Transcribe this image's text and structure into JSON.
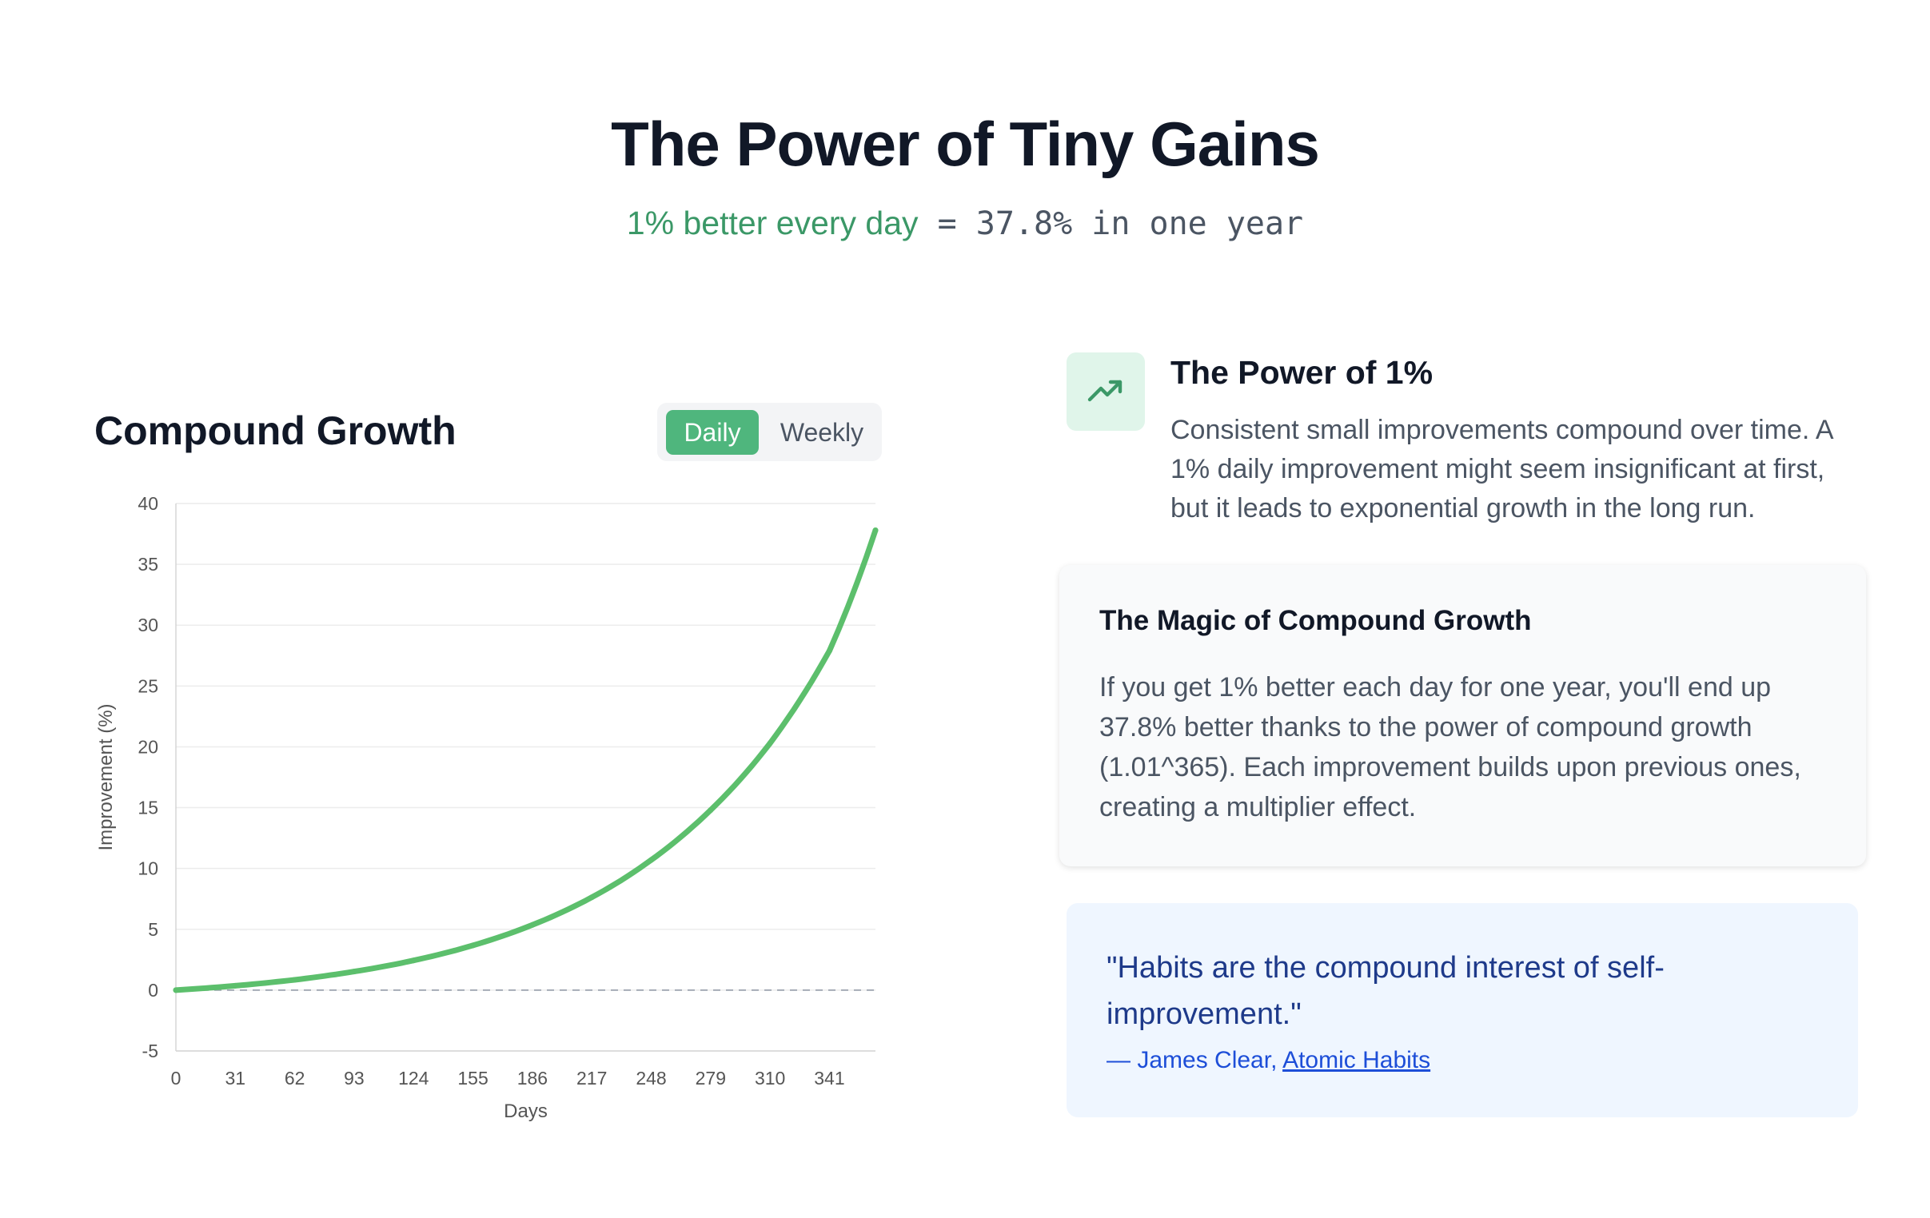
{
  "hero": {
    "title": "The Power of Tiny Gains",
    "subtitle_green": "1% better every day",
    "subtitle_mono": " = 37.8% in one year"
  },
  "chart_panel": {
    "title": "Compound Growth",
    "toggle": {
      "daily_label": "Daily",
      "weekly_label": "Weekly",
      "selected": "Daily"
    }
  },
  "chart_data": {
    "type": "line",
    "title": "",
    "xlabel": "Days",
    "ylabel": "Improvement (%)",
    "x_ticks": [
      "0",
      "31",
      "62",
      "93",
      "124",
      "155",
      "186",
      "217",
      "248",
      "279",
      "310",
      "341"
    ],
    "y_ticks": [
      "-5",
      "0",
      "5",
      "10",
      "15",
      "20",
      "25",
      "30",
      "35",
      "40"
    ],
    "xlim": [
      0,
      365
    ],
    "ylim": [
      -5,
      40
    ],
    "grid": true,
    "reference_line": {
      "y": 0,
      "style": "dashed"
    },
    "series": [
      {
        "color": "#5cbf6c",
        "x": [
          0,
          31,
          62,
          93,
          124,
          155,
          186,
          217,
          248,
          279,
          310,
          341,
          365
        ],
        "y": [
          0,
          0.36,
          0.85,
          1.53,
          2.44,
          3.68,
          5.36,
          7.63,
          10.7,
          14.8,
          20.3,
          27.9,
          37.8
        ]
      }
    ]
  },
  "power": {
    "icon": "trending-up-icon",
    "title": "The Power of 1%",
    "body": "Consistent small improvements compound over time. A 1% daily improvement might seem insignificant at first, but it leads to exponential growth in the long run."
  },
  "magic": {
    "title": "The Magic of Compound Growth",
    "body": "If you get 1% better each day for one year, you'll end up 37.8% better thanks to the power of compound growth (1.01^365). Each improvement builds upon previous ones, creating a multiplier effect."
  },
  "quote": {
    "text": "\"Habits are the compound interest of self-improvement.\"",
    "author_prefix": "— James Clear, ",
    "book": "Atomic Habits"
  },
  "colors": {
    "accent_green": "#4fb67d",
    "line_green": "#5cbf6c",
    "quote_blue": "#1e3a8a"
  }
}
